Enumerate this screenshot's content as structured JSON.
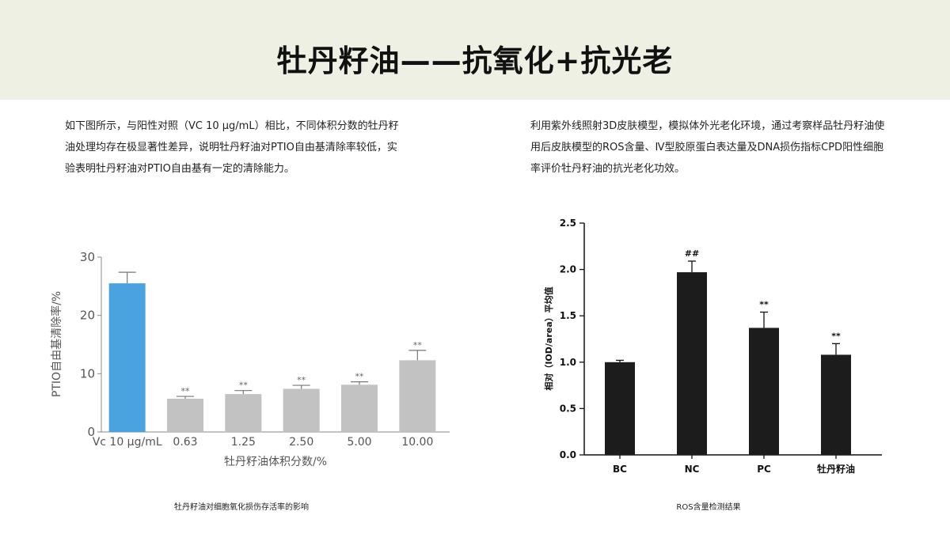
{
  "header": {
    "title": "牡丹籽油——抗氧化+抗光老"
  },
  "left_section": {
    "paragraph": "如下图所示，与阳性对照（VC 10 μg/mL）相比，不同体积分数的牡丹籽油处理均存在极显著性差异，说明牡丹籽油对PTIO自由基清除率较低，实验表明牡丹籽油对PTIO自由基有一定的清除能力。",
    "caption": "牡丹籽油对细胞氧化损伤存活率的影响"
  },
  "right_section": {
    "paragraph": "利用紫外线照射3D皮肤模型，模拟体外光老化环境，通过考察样品牡丹籽油使用后皮肤模型的ROS含量、Ⅳ型胶原蛋白表达量及DNA损伤指标CPD阳性细胞率评价牡丹籽油的抗光老化功效。",
    "caption": "ROS含量检测结果"
  },
  "colors": {
    "header_band": "#eef0e3",
    "control_bar": "#4aa3df",
    "sample_bar": "#c2c2c2",
    "dark_bar": "#1c1c1c"
  },
  "chart_data": [
    {
      "type": "bar",
      "categories": [
        "Vc 10 μg/mL",
        "0.63",
        "1.25",
        "2.50",
        "5.00",
        "10.00"
      ],
      "values": [
        25.5,
        5.7,
        6.5,
        7.4,
        8.1,
        12.3
      ],
      "errors": [
        1.9,
        0.4,
        0.6,
        0.6,
        0.5,
        1.7
      ],
      "annotations": [
        "",
        "**",
        "**",
        "**",
        "**",
        "**"
      ],
      "title": "",
      "xlabel": "牡丹籽油体积分数/%",
      "ylabel": "PTIO自由基清除率/%",
      "ylim": [
        0,
        30
      ],
      "yticks": [
        "0",
        "10",
        "20",
        "30"
      ],
      "grid": false
    },
    {
      "type": "bar",
      "categories": [
        "BC",
        "NC",
        "PC",
        "牡丹籽油"
      ],
      "values": [
        1.0,
        1.97,
        1.37,
        1.08
      ],
      "errors": [
        0.02,
        0.12,
        0.17,
        0.12
      ],
      "annotations": [
        "",
        "##",
        "**",
        "**"
      ],
      "title": "",
      "xlabel": "",
      "ylabel": "相对（IOD/area）平均值",
      "ylim": [
        0,
        2.5
      ],
      "yticks": [
        "0.0",
        "0.5",
        "1.0",
        "1.5",
        "2.0",
        "2.5"
      ],
      "grid": false
    }
  ]
}
